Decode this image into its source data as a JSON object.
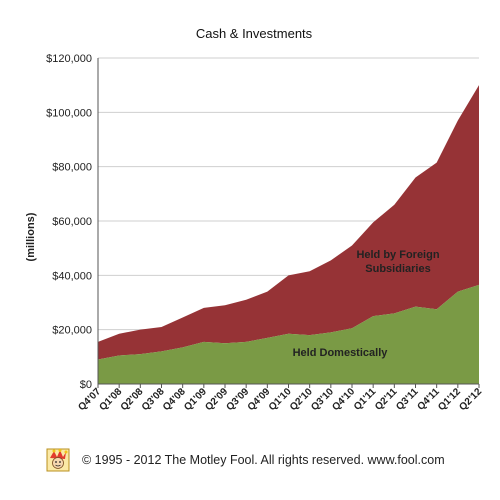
{
  "chart_data": {
    "type": "area",
    "title": "Cash & Investments",
    "ylabel": "(millions)",
    "xlabel": "",
    "ylim": [
      0,
      120000
    ],
    "yticks": [
      {
        "value": 0,
        "label": "$0"
      },
      {
        "value": 20000,
        "label": "$20,000"
      },
      {
        "value": 40000,
        "label": "$40,000"
      },
      {
        "value": 60000,
        "label": "$60,000"
      },
      {
        "value": 80000,
        "label": "$80,000"
      },
      {
        "value": 100000,
        "label": "$100,000"
      },
      {
        "value": 120000,
        "label": "$120,000"
      }
    ],
    "stacked": true,
    "grid": "horizontal",
    "categories": [
      "Q4'07",
      "Q1'08",
      "Q2'08",
      "Q3'08",
      "Q4'08",
      "Q1'09",
      "Q2'09",
      "Q3'09",
      "Q4'09",
      "Q1'10",
      "Q2'10",
      "Q3'10",
      "Q4'10",
      "Q1'11",
      "Q2'11",
      "Q3'11",
      "Q4'11",
      "Q1'12",
      "Q2'12"
    ],
    "series": [
      {
        "name": "Held Domestically",
        "color": "#7a9a45",
        "values": [
          9000,
          10500,
          11000,
          12000,
          13500,
          15500,
          15000,
          15500,
          17000,
          18500,
          18000,
          19000,
          20500,
          25000,
          26000,
          28500,
          27500,
          34000,
          36500
        ]
      },
      {
        "name": "Held by Foreign Subsidiaries",
        "color": "#963336",
        "values": [
          6500,
          8000,
          9000,
          9000,
          11000,
          12500,
          14000,
          15500,
          17000,
          21500,
          23500,
          26500,
          30500,
          34500,
          40000,
          47500,
          54000,
          63000,
          73500
        ]
      }
    ],
    "annotations": [
      {
        "text": "Held by Foreign",
        "series": "Held by Foreign Subsidiaries"
      },
      {
        "text": "Subsidiaries",
        "series": "Held by Foreign Subsidiaries"
      },
      {
        "text": "Held Domestically",
        "series": "Held Domestically"
      }
    ]
  },
  "footer": {
    "text": "© 1995 - 2012 The Motley Fool. All rights reserved. www.fool.com",
    "logo_icon": "motley-fool-jester-logo"
  }
}
